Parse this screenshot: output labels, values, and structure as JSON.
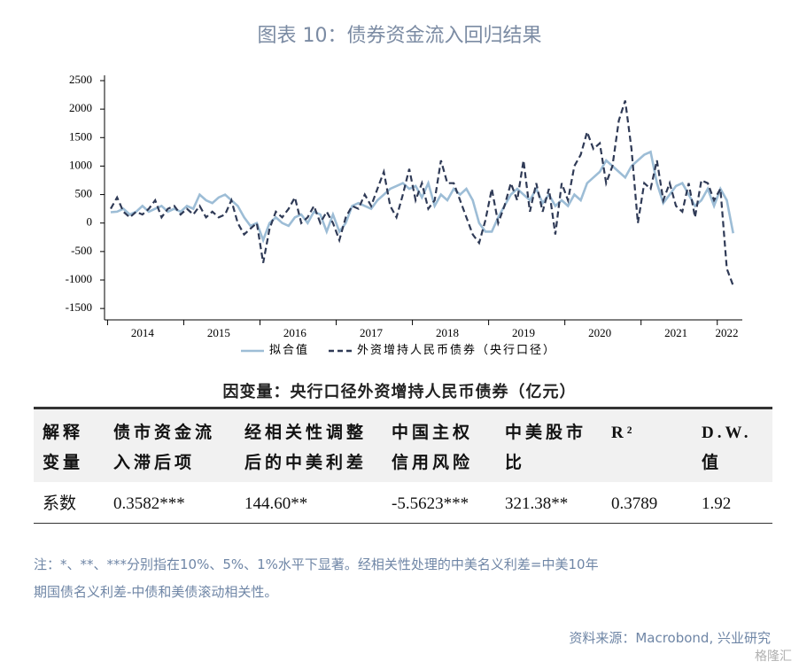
{
  "title": "图表 10：债券资金流入回归结果",
  "chart_data": {
    "type": "line",
    "categories": [
      null,
      null,
      null,
      null,
      null,
      "2014",
      null,
      null,
      null,
      null,
      null,
      null,
      null,
      null,
      null,
      null,
      null,
      "2015",
      null,
      null,
      null,
      null,
      null,
      null,
      null,
      null,
      null,
      null,
      null,
      "2016",
      null,
      null,
      null,
      null,
      null,
      null,
      null,
      null,
      null,
      null,
      null,
      "2017",
      null,
      null,
      null,
      null,
      null,
      null,
      null,
      null,
      null,
      null,
      null,
      "2018",
      null,
      null,
      null,
      null,
      null,
      null,
      null,
      null,
      null,
      null,
      null,
      "2019",
      null,
      null,
      null,
      null,
      null,
      null,
      null,
      null,
      null,
      null,
      null,
      "2020",
      null,
      null,
      null,
      null,
      null,
      null,
      null,
      null,
      null,
      null,
      null,
      "2021",
      null,
      null,
      null,
      null,
      null,
      null,
      null,
      "2022",
      null
    ],
    "series": [
      {
        "name": "拟合值",
        "color": "#9dbdd6",
        "dash": false,
        "values": [
          190,
          200,
          250,
          150,
          200,
          300,
          200,
          250,
          300,
          200,
          250,
          200,
          300,
          250,
          500,
          400,
          350,
          450,
          500,
          400,
          300,
          100,
          -50,
          0,
          -300,
          0,
          100,
          0,
          -50,
          100,
          150,
          0,
          200,
          150,
          -150,
          150,
          -150,
          0,
          300,
          350,
          300,
          250,
          400,
          500,
          600,
          650,
          700,
          600,
          650,
          450,
          700,
          300,
          500,
          400,
          600,
          500,
          600,
          400,
          0,
          -150,
          -150,
          100,
          300,
          500,
          600,
          500,
          400,
          600,
          350,
          500,
          300,
          400,
          300,
          500,
          400,
          700,
          800,
          900,
          1100,
          1000,
          900,
          800,
          1000,
          1100,
          1200,
          1250,
          700,
          350,
          500,
          650,
          700,
          500,
          300,
          400,
          600,
          300,
          600,
          400,
          -180
        ]
      },
      {
        "name": "外资增持人民币债券（央行口径）",
        "color": "#2f3a56",
        "dash": true,
        "values": [
          250,
          450,
          200,
          100,
          200,
          150,
          250,
          400,
          100,
          250,
          300,
          150,
          250,
          150,
          300,
          100,
          200,
          100,
          150,
          400,
          0,
          -200,
          -100,
          0,
          -700,
          -100,
          200,
          100,
          250,
          450,
          0,
          100,
          300,
          0,
          200,
          0,
          -300,
          100,
          300,
          250,
          500,
          300,
          600,
          900,
          300,
          100,
          500,
          950,
          400,
          700,
          250,
          400,
          1100,
          700,
          700,
          400,
          100,
          -200,
          -350,
          50,
          600,
          0,
          300,
          700,
          400,
          1100,
          200,
          700,
          200,
          600,
          -200,
          700,
          400,
          1000,
          1200,
          1600,
          1300,
          1400,
          700,
          1000,
          1800,
          2150,
          1300,
          0,
          700,
          600,
          1100,
          400,
          700,
          300,
          200,
          700,
          100,
          750,
          700,
          400,
          600,
          -800,
          -1100
        ]
      }
    ],
    "ylim": [
      -1700,
      2500
    ],
    "yticks": [
      -1500,
      -1000,
      -500,
      0,
      500,
      1000,
      1500,
      2000,
      2500
    ]
  },
  "table": {
    "caption": "因变量：央行口径外资增持人民币债券（亿元）",
    "header": [
      [
        "解释",
        "变量"
      ],
      [
        "债市资金流",
        "入滞后项"
      ],
      [
        "经相关性调整",
        "后的中美利差"
      ],
      [
        "中国主权",
        "信用风险"
      ],
      [
        "中美股市",
        "比"
      ],
      [
        "R²"
      ],
      [
        "D.W.",
        "值"
      ]
    ],
    "rows": [
      [
        "系数",
        "0.3582***",
        "144.60**",
        "-5.5623***",
        "321.38**",
        "0.3789",
        "1.92"
      ]
    ]
  },
  "note": [
    "注：*、**、***分别指在10%、5%、1%水平下显著。经相关性处理的中美名义利差=中美10年",
    "期国债名义利差-中债和美债滚动相关性。"
  ],
  "source": "资料来源：Macrobond, 兴业研究",
  "watermark": "格隆汇"
}
